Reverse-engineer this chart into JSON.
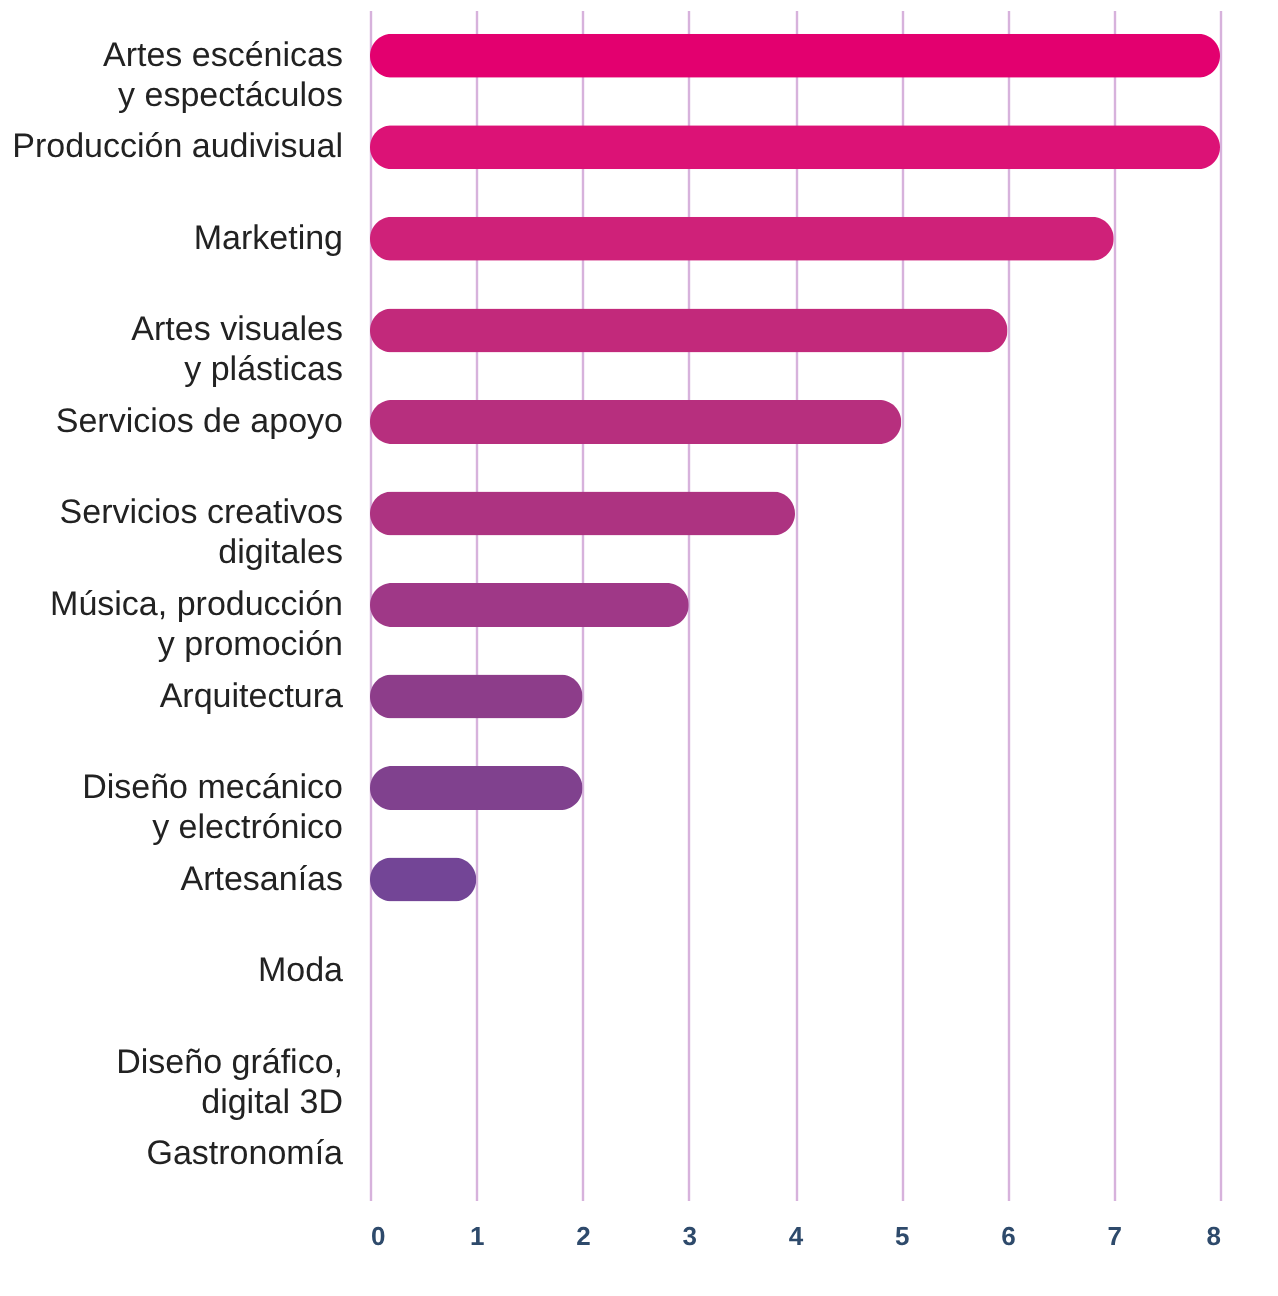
{
  "chart_data": {
    "type": "bar",
    "orientation": "horizontal",
    "categories": [
      "Artes escénicas\ny espectáculos",
      "Producción audivisual",
      "Marketing",
      "Artes visuales\ny plásticas",
      "Servicios de apoyo",
      "Servicios creativos\ndigitales",
      "Música, producción\ny promoción",
      "Arquitectura",
      "Diseño mecánico\ny electrónico",
      "Artesanías",
      "Moda",
      "Diseño gráfico,\ndigital 3D",
      "Gastronomía"
    ],
    "values": [
      8,
      8,
      7,
      6,
      5,
      4,
      3,
      2,
      2,
      1,
      0,
      0,
      0
    ],
    "colors": [
      "#e3006f",
      "#dc1276",
      "#cf2179",
      "#c2297b",
      "#b72f7e",
      "#ad3381",
      "#9f3887",
      "#8d3d8a",
      "#80418e",
      "#734596",
      "#6e4699",
      "#6b479b",
      "#68489d"
    ],
    "xlim": [
      0,
      8
    ],
    "xticks": [
      0,
      1,
      2,
      3,
      4,
      5,
      6,
      7,
      8
    ],
    "grid": "x"
  }
}
